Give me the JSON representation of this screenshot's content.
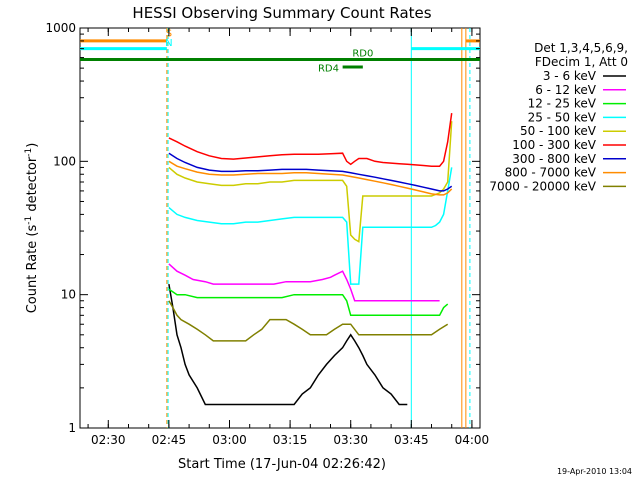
{
  "chart_data": {
    "type": "line",
    "title": "HESSI Observing Summary Count Rates",
    "xlabel": "Start Time (17-Jun-04 02:26:42)",
    "ylabel_main": "Count Rate (s",
    "ylabel_sup1": "-1",
    "ylabel_mid": " detector",
    "ylabel_sup2": "-1",
    "ylabel_end": ")",
    "yscale": "log",
    "ylim": [
      1,
      1000
    ],
    "xlim_min": [
      -3,
      96
    ],
    "x_ticks": [
      {
        "v": 4,
        "label": "02:30"
      },
      {
        "v": 19,
        "label": "02:45"
      },
      {
        "v": 34,
        "label": "03:00"
      },
      {
        "v": 49,
        "label": "03:15"
      },
      {
        "v": 64,
        "label": "03:30"
      },
      {
        "v": 79,
        "label": "03:45"
      },
      {
        "v": 94,
        "label": "04:00"
      }
    ],
    "y_ticks": [
      {
        "v": 1,
        "label": "1"
      },
      {
        "v": 10,
        "label": "10"
      },
      {
        "v": 100,
        "label": "100"
      },
      {
        "v": 1000,
        "label": "1000"
      }
    ],
    "legend_header": [
      "Det 1,3,4,5,6,9,",
      "FDecim 1, Att 0"
    ],
    "series": [
      {
        "name": "3 - 6 keV",
        "color": "#000000",
        "x": [
          19,
          20,
          21,
          22,
          23,
          24,
          26,
          28,
          30,
          32,
          34,
          36,
          38,
          40,
          42,
          44,
          46,
          48,
          50,
          52,
          54,
          56,
          58,
          60,
          62,
          63,
          64,
          65,
          66,
          67,
          68,
          70,
          72,
          74,
          76,
          78
        ],
        "y": [
          12,
          8,
          5,
          4,
          3,
          2.5,
          2,
          1.5,
          1.5,
          1.5,
          1.5,
          1.5,
          1.5,
          1.5,
          1.5,
          1.5,
          1.5,
          1.5,
          1.5,
          1.8,
          2,
          2.5,
          3,
          3.5,
          4,
          4.5,
          5,
          4.5,
          4,
          3.5,
          3,
          2.5,
          2,
          1.8,
          1.5,
          1.5
        ]
      },
      {
        "name": "6 - 12 keV",
        "color": "#ff00ff",
        "x": [
          19,
          21,
          23,
          25,
          28,
          30,
          33,
          36,
          39,
          42,
          45,
          48,
          51,
          54,
          57,
          59,
          60,
          61,
          62,
          63,
          64,
          65,
          66,
          67,
          68,
          70,
          72,
          74,
          76,
          78,
          80,
          82,
          84,
          86
        ],
        "y": [
          17,
          15,
          14,
          13,
          12.5,
          12,
          12,
          12,
          12,
          12,
          12,
          12.5,
          12.5,
          12.5,
          13,
          13.5,
          14,
          14.5,
          15,
          13,
          11,
          9,
          9,
          9,
          9,
          9,
          9,
          9,
          9,
          9,
          9,
          9,
          9,
          9
        ]
      },
      {
        "name": "12 - 25 keV",
        "color": "#00ee00",
        "x": [
          19,
          21,
          23,
          26,
          29,
          32,
          35,
          38,
          41,
          44,
          47,
          50,
          53,
          56,
          59,
          62,
          63,
          64,
          65,
          66,
          68,
          70,
          72,
          74,
          76,
          78,
          80,
          82,
          84,
          86,
          87,
          88
        ],
        "y": [
          11,
          10,
          10,
          9.5,
          9.5,
          9.5,
          9.5,
          9.5,
          9.5,
          9.5,
          9.5,
          10,
          10,
          10,
          10,
          10,
          9,
          7,
          7,
          7,
          7,
          7,
          7,
          7,
          7,
          7,
          7,
          7,
          7,
          7,
          8,
          8.5
        ]
      },
      {
        "name": "25 - 50 keV",
        "color": "#00ffff",
        "x": [
          19,
          21,
          23,
          26,
          29,
          32,
          35,
          38,
          41,
          44,
          47,
          50,
          53,
          56,
          59,
          62,
          63,
          64,
          65,
          66,
          67,
          68,
          70,
          72,
          74,
          76,
          78,
          80,
          82,
          84,
          85,
          86,
          87,
          88,
          89
        ],
        "y": [
          45,
          40,
          38,
          36,
          35,
          34,
          34,
          35,
          35,
          36,
          37,
          38,
          38,
          38,
          38,
          38,
          35,
          12,
          12,
          12,
          32,
          32,
          32,
          32,
          32,
          32,
          32,
          32,
          32,
          32,
          33,
          35,
          40,
          60,
          90
        ]
      },
      {
        "name": "50 - 100 keV",
        "color": "#cccc00",
        "x": [
          19,
          21,
          23,
          26,
          29,
          32,
          35,
          38,
          41,
          44,
          47,
          50,
          53,
          56,
          59,
          62,
          63,
          64,
          65,
          66,
          67,
          68,
          70,
          72,
          74,
          76,
          78,
          80,
          82,
          84,
          86,
          87,
          88,
          89
        ],
        "y": [
          90,
          80,
          75,
          70,
          68,
          66,
          66,
          68,
          68,
          70,
          70,
          72,
          72,
          72,
          72,
          72,
          65,
          28,
          26,
          25,
          55,
          55,
          55,
          55,
          55,
          55,
          55,
          55,
          55,
          55,
          58,
          62,
          70,
          200
        ]
      },
      {
        "name": "100 - 300 keV",
        "color": "#ff0000",
        "x": [
          19,
          21,
          23,
          26,
          29,
          32,
          35,
          38,
          41,
          44,
          47,
          50,
          53,
          56,
          59,
          62,
          63,
          64,
          65,
          66,
          68,
          70,
          72,
          74,
          76,
          78,
          80,
          82,
          84,
          86,
          87,
          88,
          89
        ],
        "y": [
          150,
          140,
          130,
          118,
          110,
          105,
          104,
          106,
          108,
          110,
          112,
          113,
          113,
          113,
          114,
          115,
          100,
          95,
          100,
          105,
          105,
          100,
          98,
          97,
          96,
          95,
          94,
          93,
          92,
          92,
          100,
          140,
          230
        ]
      },
      {
        "name": "300 - 800 keV",
        "color": "#0000cc",
        "x": [
          19,
          21,
          23,
          26,
          29,
          32,
          35,
          38,
          41,
          44,
          47,
          50,
          53,
          56,
          59,
          62,
          64,
          66,
          68,
          70,
          72,
          74,
          76,
          78,
          80,
          82,
          84,
          86,
          87,
          88,
          89
        ],
        "y": [
          115,
          105,
          98,
          90,
          86,
          84,
          84,
          85,
          85,
          86,
          87,
          87,
          87,
          86,
          85,
          84,
          82,
          80,
          78,
          76,
          74,
          72,
          70,
          68,
          66,
          64,
          62,
          60,
          60,
          62,
          65
        ]
      },
      {
        "name": "800 - 7000 keV",
        "color": "#ff8c00",
        "x": [
          19,
          21,
          23,
          26,
          29,
          32,
          35,
          38,
          41,
          44,
          47,
          50,
          53,
          56,
          59,
          62,
          64,
          66,
          68,
          70,
          72,
          74,
          76,
          78,
          80,
          82,
          84,
          86,
          87,
          88,
          89
        ],
        "y": [
          100,
          92,
          88,
          83,
          80,
          79,
          79,
          80,
          81,
          81,
          81,
          82,
          82,
          81,
          80,
          79,
          77,
          75,
          73,
          71,
          69,
          67,
          65,
          63,
          61,
          59,
          57,
          56,
          56,
          58,
          62
        ]
      },
      {
        "name": "7000 - 20000 keV",
        "color": "#808000",
        "x": [
          19,
          20,
          21,
          22,
          24,
          26,
          28,
          30,
          32,
          34,
          36,
          38,
          40,
          42,
          44,
          46,
          48,
          50,
          52,
          54,
          56,
          58,
          60,
          62,
          64,
          66,
          68,
          70,
          72,
          74,
          76,
          78,
          80,
          82,
          84,
          86,
          88
        ],
        "y": [
          9,
          8,
          7,
          6.5,
          6,
          5.5,
          5,
          4.5,
          4.5,
          4.5,
          4.5,
          4.5,
          5,
          5.5,
          6.5,
          6.5,
          6.5,
          6,
          5.5,
          5,
          5,
          5,
          5.5,
          6,
          6,
          5,
          5,
          5,
          5,
          5,
          5,
          5,
          5,
          5,
          5,
          5.5,
          6
        ]
      }
    ],
    "markers": {
      "flag_s": {
        "label": "S",
        "color": "#ff8c00",
        "value": 800,
        "x_start": -3,
        "x_end": 18.5,
        "x2_start": 92.5,
        "x2_end": 96
      },
      "flag_n": {
        "label": "N",
        "color": "#00ffff",
        "value": 700,
        "x_start": -3,
        "x_end": 18.5,
        "x2_start": 79,
        "x2_end": 96
      },
      "flag_rd0": {
        "label": "RD0",
        "color": "#008000",
        "value": 580,
        "x_start": -3,
        "x_end": 96
      },
      "flag_rd4": {
        "label": "RD4",
        "color": "#008000",
        "value": 510,
        "x_start": 62,
        "x_end": 67
      }
    },
    "vlines": [
      {
        "x": 18.5,
        "color": "#ff8c00",
        "dash": true
      },
      {
        "x": 18.8,
        "color": "#00ffff",
        "dash": true
      },
      {
        "x": 79,
        "color": "#00ffff",
        "dash": false
      },
      {
        "x": 91.5,
        "color": "#ff8c00",
        "dash": false
      },
      {
        "x": 92.5,
        "color": "#ff8c00",
        "dash": false
      },
      {
        "x": 93.5,
        "color": "#00ffff",
        "dash": true
      }
    ]
  },
  "footer": {
    "timestamp": "19-Apr-2010 13:04"
  }
}
